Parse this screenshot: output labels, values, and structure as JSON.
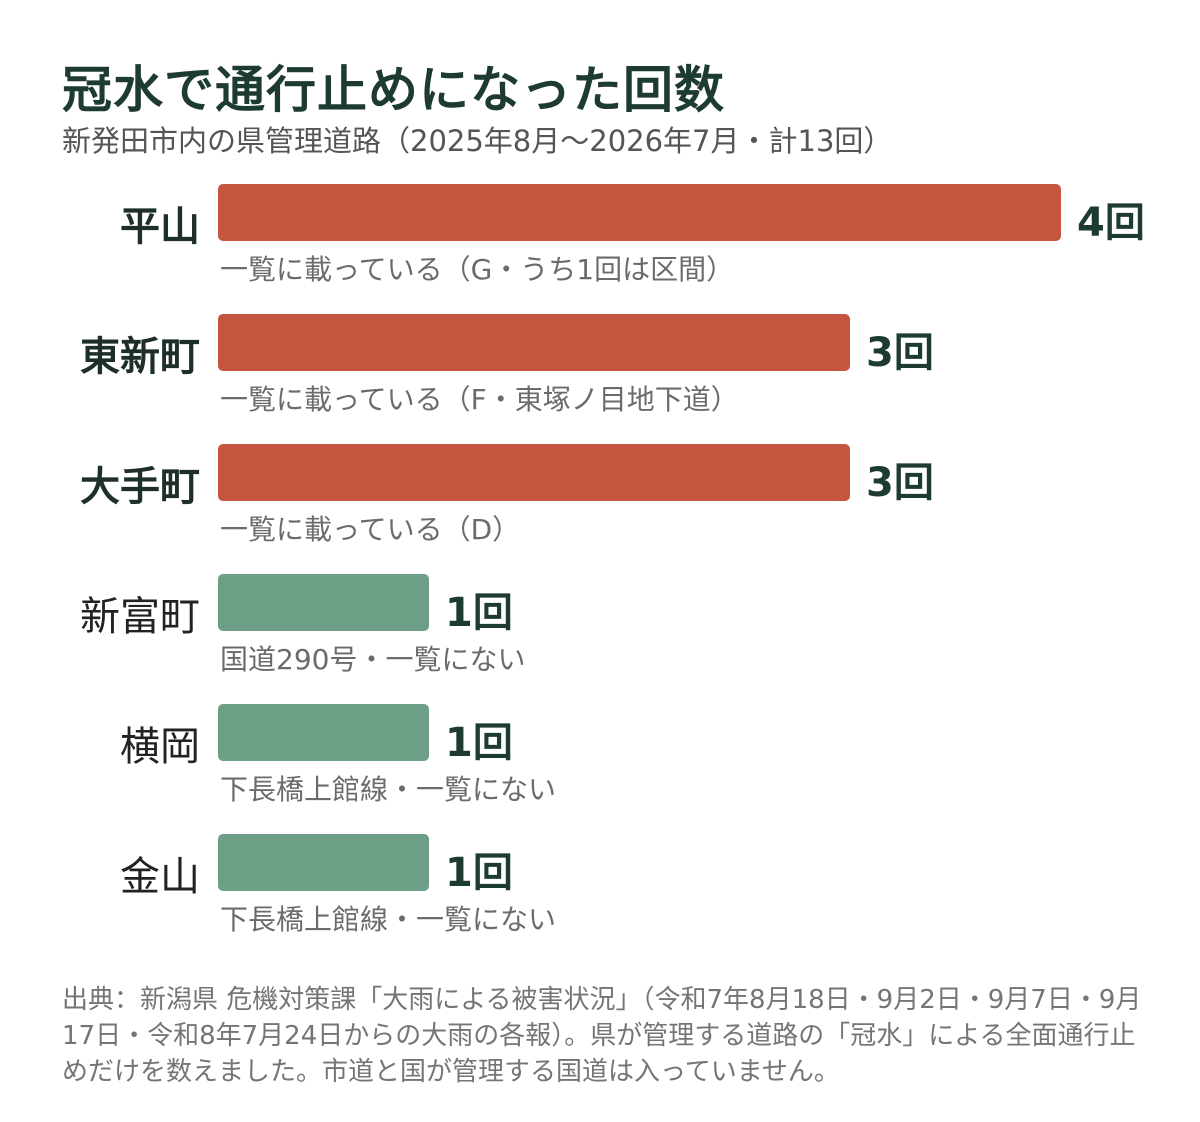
{
  "title": "冠水で通行止めになった回数",
  "subtitle": "新発田市内の県管理道路（2025年8月～2026年7月・計13回）",
  "colors": {
    "listed": "#c6553f",
    "unlisted": "#6d9e86"
  },
  "chart_data": {
    "type": "bar",
    "orientation": "horizontal",
    "xlim": [
      0,
      4
    ],
    "categories": [
      "平山",
      "東新町",
      "大手町",
      "新富町",
      "横岡",
      "金山"
    ],
    "values": [
      4,
      3,
      3,
      1,
      1,
      1
    ],
    "value_labels": [
      "4回",
      "3回",
      "3回",
      "1回",
      "1回",
      "1回"
    ],
    "notes": [
      "一覧に載っている（G・うち1回は区間）",
      "一覧に載っている（F・東塚ノ目地下道）",
      "一覧に載っている（D）",
      "国道290号・一覧にない",
      "下長橋上館線・一覧にない",
      "下長橋上館線・一覧にない"
    ],
    "listed": [
      true,
      true,
      true,
      false,
      false,
      false
    ]
  },
  "source": "出典：新潟県 危機対策課「大雨による被害状況」（令和7年8月18日・9月2日・9月7日・9月17日・令和8年7月24日からの大雨の各報）。県が管理する道路の「冠水」による全面通行止めだけを数えました。市道と国が管理する国道は入っていません。"
}
